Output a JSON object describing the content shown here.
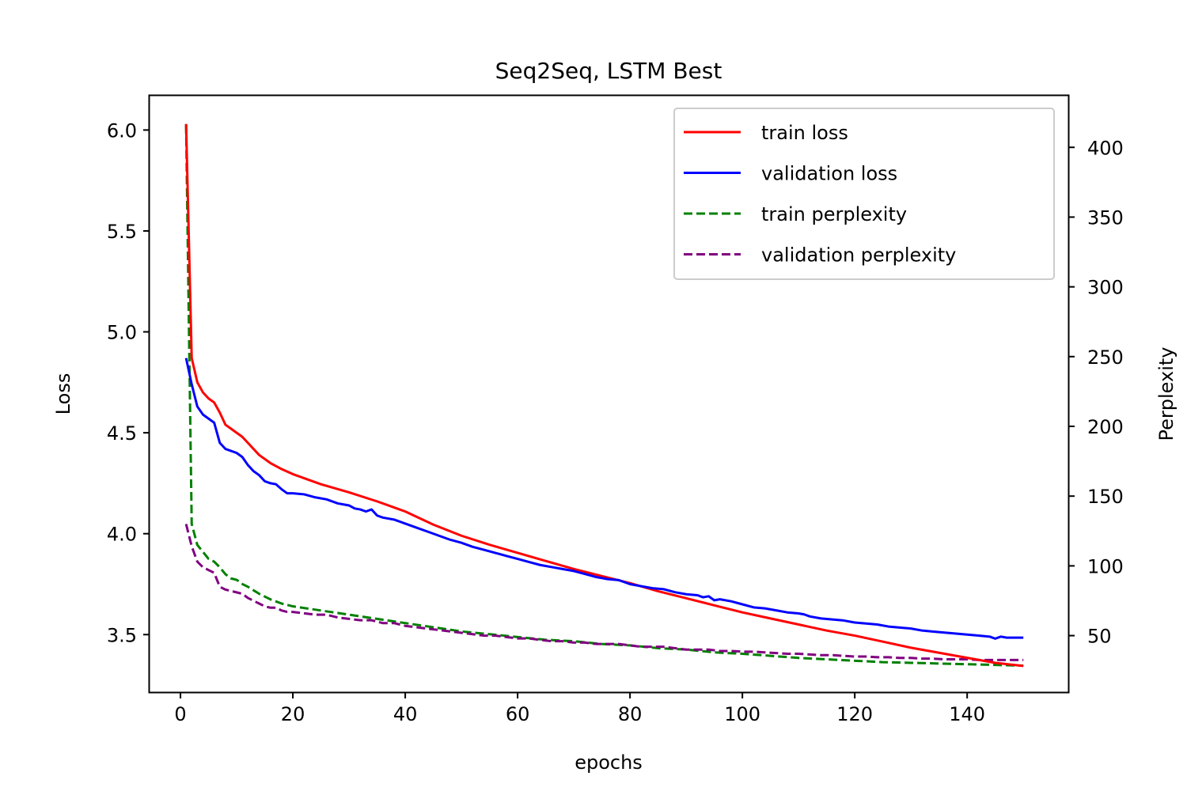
{
  "chart_data": {
    "type": "line",
    "title": "Seq2Seq, LSTM Best",
    "xlabel": "epochs",
    "ylabel": "Loss",
    "y2label": "Perplexity",
    "xlim": [
      -5.5,
      158
    ],
    "ylim": [
      3.215,
      6.17
    ],
    "y2lim": [
      9.5,
      437
    ],
    "xticks": [
      0,
      20,
      40,
      60,
      80,
      100,
      120,
      140
    ],
    "yticks": [
      3.5,
      4.0,
      4.5,
      5.0,
      5.5,
      6.0
    ],
    "yticklabels": [
      "3.5",
      "4.0",
      "4.5",
      "5.0",
      "5.5",
      "6.0"
    ],
    "y2ticks": [
      50,
      100,
      150,
      200,
      250,
      300,
      350,
      400
    ],
    "grid": false,
    "legend_position": "top-right",
    "series_colors": {
      "train_loss": "#ff0000",
      "validation_loss": "#0000ff",
      "train_perplexity": "#008000",
      "validation_perplexity": "#800080"
    },
    "epochs_range": [
      1,
      150
    ],
    "series": [
      {
        "name": "train loss",
        "axis": "left",
        "style": "solid",
        "color": "#ff0000",
        "points": [
          [
            1,
            6.03
          ],
          [
            2,
            4.87
          ],
          [
            3,
            4.75
          ],
          [
            4,
            4.7
          ],
          [
            5,
            4.67
          ],
          [
            6,
            4.65
          ],
          [
            7,
            4.6
          ],
          [
            8,
            4.54
          ],
          [
            9,
            4.52
          ],
          [
            10,
            4.5
          ],
          [
            11,
            4.48
          ],
          [
            12,
            4.45
          ],
          [
            14,
            4.39
          ],
          [
            16,
            4.35
          ],
          [
            18,
            4.32
          ],
          [
            20,
            4.295
          ],
          [
            25,
            4.245
          ],
          [
            30,
            4.205
          ],
          [
            35,
            4.16
          ],
          [
            40,
            4.11
          ],
          [
            45,
            4.045
          ],
          [
            50,
            3.99
          ],
          [
            55,
            3.945
          ],
          [
            60,
            3.905
          ],
          [
            65,
            3.865
          ],
          [
            70,
            3.825
          ],
          [
            75,
            3.79
          ],
          [
            80,
            3.755
          ],
          [
            85,
            3.715
          ],
          [
            90,
            3.68
          ],
          [
            95,
            3.645
          ],
          [
            100,
            3.61
          ],
          [
            105,
            3.58
          ],
          [
            110,
            3.55
          ],
          [
            115,
            3.52
          ],
          [
            120,
            3.495
          ],
          [
            125,
            3.465
          ],
          [
            130,
            3.435
          ],
          [
            135,
            3.41
          ],
          [
            140,
            3.385
          ],
          [
            145,
            3.36
          ],
          [
            150,
            3.345
          ]
        ]
      },
      {
        "name": "validation loss",
        "axis": "left",
        "style": "solid",
        "color": "#0000ff",
        "points": [
          [
            1,
            4.87
          ],
          [
            2,
            4.74
          ],
          [
            3,
            4.63
          ],
          [
            4,
            4.59
          ],
          [
            5,
            4.57
          ],
          [
            6,
            4.55
          ],
          [
            7,
            4.45
          ],
          [
            8,
            4.42
          ],
          [
            9,
            4.41
          ],
          [
            10,
            4.4
          ],
          [
            11,
            4.38
          ],
          [
            12,
            4.34
          ],
          [
            13,
            4.31
          ],
          [
            14,
            4.29
          ],
          [
            15,
            4.26
          ],
          [
            16,
            4.25
          ],
          [
            17,
            4.245
          ],
          [
            18,
            4.22
          ],
          [
            19,
            4.2
          ],
          [
            20,
            4.2
          ],
          [
            22,
            4.195
          ],
          [
            24,
            4.18
          ],
          [
            26,
            4.17
          ],
          [
            28,
            4.15
          ],
          [
            30,
            4.14
          ],
          [
            31,
            4.125
          ],
          [
            32,
            4.12
          ],
          [
            33,
            4.11
          ],
          [
            34,
            4.12
          ],
          [
            35,
            4.09
          ],
          [
            36,
            4.08
          ],
          [
            38,
            4.07
          ],
          [
            40,
            4.05
          ],
          [
            42,
            4.03
          ],
          [
            44,
            4.01
          ],
          [
            46,
            3.99
          ],
          [
            48,
            3.97
          ],
          [
            50,
            3.955
          ],
          [
            52,
            3.935
          ],
          [
            54,
            3.92
          ],
          [
            56,
            3.905
          ],
          [
            58,
            3.89
          ],
          [
            60,
            3.875
          ],
          [
            62,
            3.86
          ],
          [
            64,
            3.845
          ],
          [
            66,
            3.835
          ],
          [
            68,
            3.825
          ],
          [
            70,
            3.815
          ],
          [
            72,
            3.8
          ],
          [
            74,
            3.785
          ],
          [
            76,
            3.775
          ],
          [
            78,
            3.77
          ],
          [
            80,
            3.75
          ],
          [
            82,
            3.74
          ],
          [
            84,
            3.73
          ],
          [
            86,
            3.725
          ],
          [
            88,
            3.71
          ],
          [
            90,
            3.7
          ],
          [
            92,
            3.695
          ],
          [
            93,
            3.685
          ],
          [
            94,
            3.69
          ],
          [
            95,
            3.67
          ],
          [
            96,
            3.675
          ],
          [
            98,
            3.665
          ],
          [
            100,
            3.65
          ],
          [
            102,
            3.635
          ],
          [
            104,
            3.63
          ],
          [
            106,
            3.62
          ],
          [
            108,
            3.61
          ],
          [
            110,
            3.605
          ],
          [
            111,
            3.6
          ],
          [
            112,
            3.59
          ],
          [
            114,
            3.58
          ],
          [
            116,
            3.575
          ],
          [
            118,
            3.57
          ],
          [
            120,
            3.56
          ],
          [
            122,
            3.555
          ],
          [
            124,
            3.55
          ],
          [
            126,
            3.54
          ],
          [
            128,
            3.535
          ],
          [
            130,
            3.53
          ],
          [
            132,
            3.52
          ],
          [
            134,
            3.515
          ],
          [
            136,
            3.51
          ],
          [
            138,
            3.505
          ],
          [
            140,
            3.5
          ],
          [
            142,
            3.495
          ],
          [
            144,
            3.49
          ],
          [
            145,
            3.48
          ],
          [
            146,
            3.49
          ],
          [
            147,
            3.485
          ],
          [
            148,
            3.485
          ],
          [
            150,
            3.485
          ]
        ]
      },
      {
        "name": "train perplexity",
        "axis": "right",
        "style": "dashed",
        "color": "#008000",
        "points": [
          [
            1,
            416
          ],
          [
            2,
            130
          ],
          [
            3,
            115
          ],
          [
            4,
            110
          ],
          [
            5,
            105
          ],
          [
            6,
            103
          ],
          [
            7,
            99
          ],
          [
            8,
            94
          ],
          [
            9,
            91
          ],
          [
            10,
            90
          ],
          [
            11,
            87
          ],
          [
            12,
            85
          ],
          [
            14,
            80
          ],
          [
            16,
            76
          ],
          [
            18,
            73
          ],
          [
            20,
            71
          ],
          [
            25,
            68
          ],
          [
            30,
            65
          ],
          [
            35,
            62
          ],
          [
            40,
            59
          ],
          [
            45,
            56
          ],
          [
            50,
            53
          ],
          [
            55,
            51
          ],
          [
            60,
            49
          ],
          [
            65,
            47
          ],
          [
            70,
            46
          ],
          [
            75,
            44
          ],
          [
            80,
            43
          ],
          [
            85,
            41
          ],
          [
            90,
            40
          ],
          [
            95,
            38
          ],
          [
            100,
            37
          ],
          [
            105,
            35.5
          ],
          [
            110,
            34
          ],
          [
            115,
            33
          ],
          [
            120,
            32
          ],
          [
            125,
            31
          ],
          [
            130,
            30.5
          ],
          [
            135,
            30
          ],
          [
            140,
            29.5
          ],
          [
            145,
            29
          ],
          [
            150,
            28.5
          ]
        ]
      },
      {
        "name": "validation perplexity",
        "axis": "right",
        "style": "dashed",
        "color": "#800080",
        "points": [
          [
            1,
            130
          ],
          [
            2,
            114
          ],
          [
            3,
            103
          ],
          [
            4,
            99
          ],
          [
            5,
            97
          ],
          [
            6,
            95
          ],
          [
            7,
            85
          ],
          [
            8,
            83
          ],
          [
            9,
            82
          ],
          [
            10,
            81
          ],
          [
            11,
            80
          ],
          [
            12,
            77
          ],
          [
            13,
            75
          ],
          [
            14,
            73
          ],
          [
            15,
            71
          ],
          [
            16,
            70
          ],
          [
            17,
            70
          ],
          [
            18,
            68
          ],
          [
            19,
            67
          ],
          [
            20,
            67
          ],
          [
            22,
            66
          ],
          [
            24,
            65
          ],
          [
            26,
            65
          ],
          [
            28,
            63
          ],
          [
            30,
            62
          ],
          [
            32,
            61
          ],
          [
            33,
            61
          ],
          [
            34,
            61
          ],
          [
            35,
            60
          ],
          [
            36,
            59
          ],
          [
            38,
            59
          ],
          [
            40,
            57
          ],
          [
            42,
            56
          ],
          [
            44,
            55
          ],
          [
            46,
            54
          ],
          [
            48,
            53
          ],
          [
            50,
            52
          ],
          [
            52,
            51
          ],
          [
            54,
            50
          ],
          [
            56,
            50
          ],
          [
            58,
            49
          ],
          [
            60,
            48
          ],
          [
            62,
            48
          ],
          [
            64,
            47
          ],
          [
            66,
            46
          ],
          [
            68,
            46
          ],
          [
            70,
            45
          ],
          [
            72,
            45
          ],
          [
            74,
            44
          ],
          [
            76,
            44
          ],
          [
            78,
            44
          ],
          [
            80,
            43
          ],
          [
            82,
            42
          ],
          [
            84,
            42
          ],
          [
            86,
            42
          ],
          [
            88,
            41
          ],
          [
            90,
            40
          ],
          [
            92,
            40
          ],
          [
            94,
            40
          ],
          [
            96,
            39
          ],
          [
            98,
            39
          ],
          [
            100,
            38.5
          ],
          [
            102,
            38.5
          ],
          [
            104,
            38
          ],
          [
            106,
            37.5
          ],
          [
            108,
            37
          ],
          [
            110,
            37
          ],
          [
            112,
            36.5
          ],
          [
            114,
            36
          ],
          [
            116,
            36
          ],
          [
            118,
            35.5
          ],
          [
            120,
            35
          ],
          [
            122,
            35
          ],
          [
            124,
            34.5
          ],
          [
            126,
            34.5
          ],
          [
            128,
            34
          ],
          [
            130,
            34
          ],
          [
            132,
            33.5
          ],
          [
            134,
            33.5
          ],
          [
            136,
            33
          ],
          [
            138,
            33
          ],
          [
            140,
            33
          ],
          [
            142,
            32.5
          ],
          [
            144,
            32.5
          ],
          [
            146,
            32.5
          ],
          [
            148,
            32.5
          ],
          [
            150,
            32.5
          ]
        ]
      }
    ]
  }
}
